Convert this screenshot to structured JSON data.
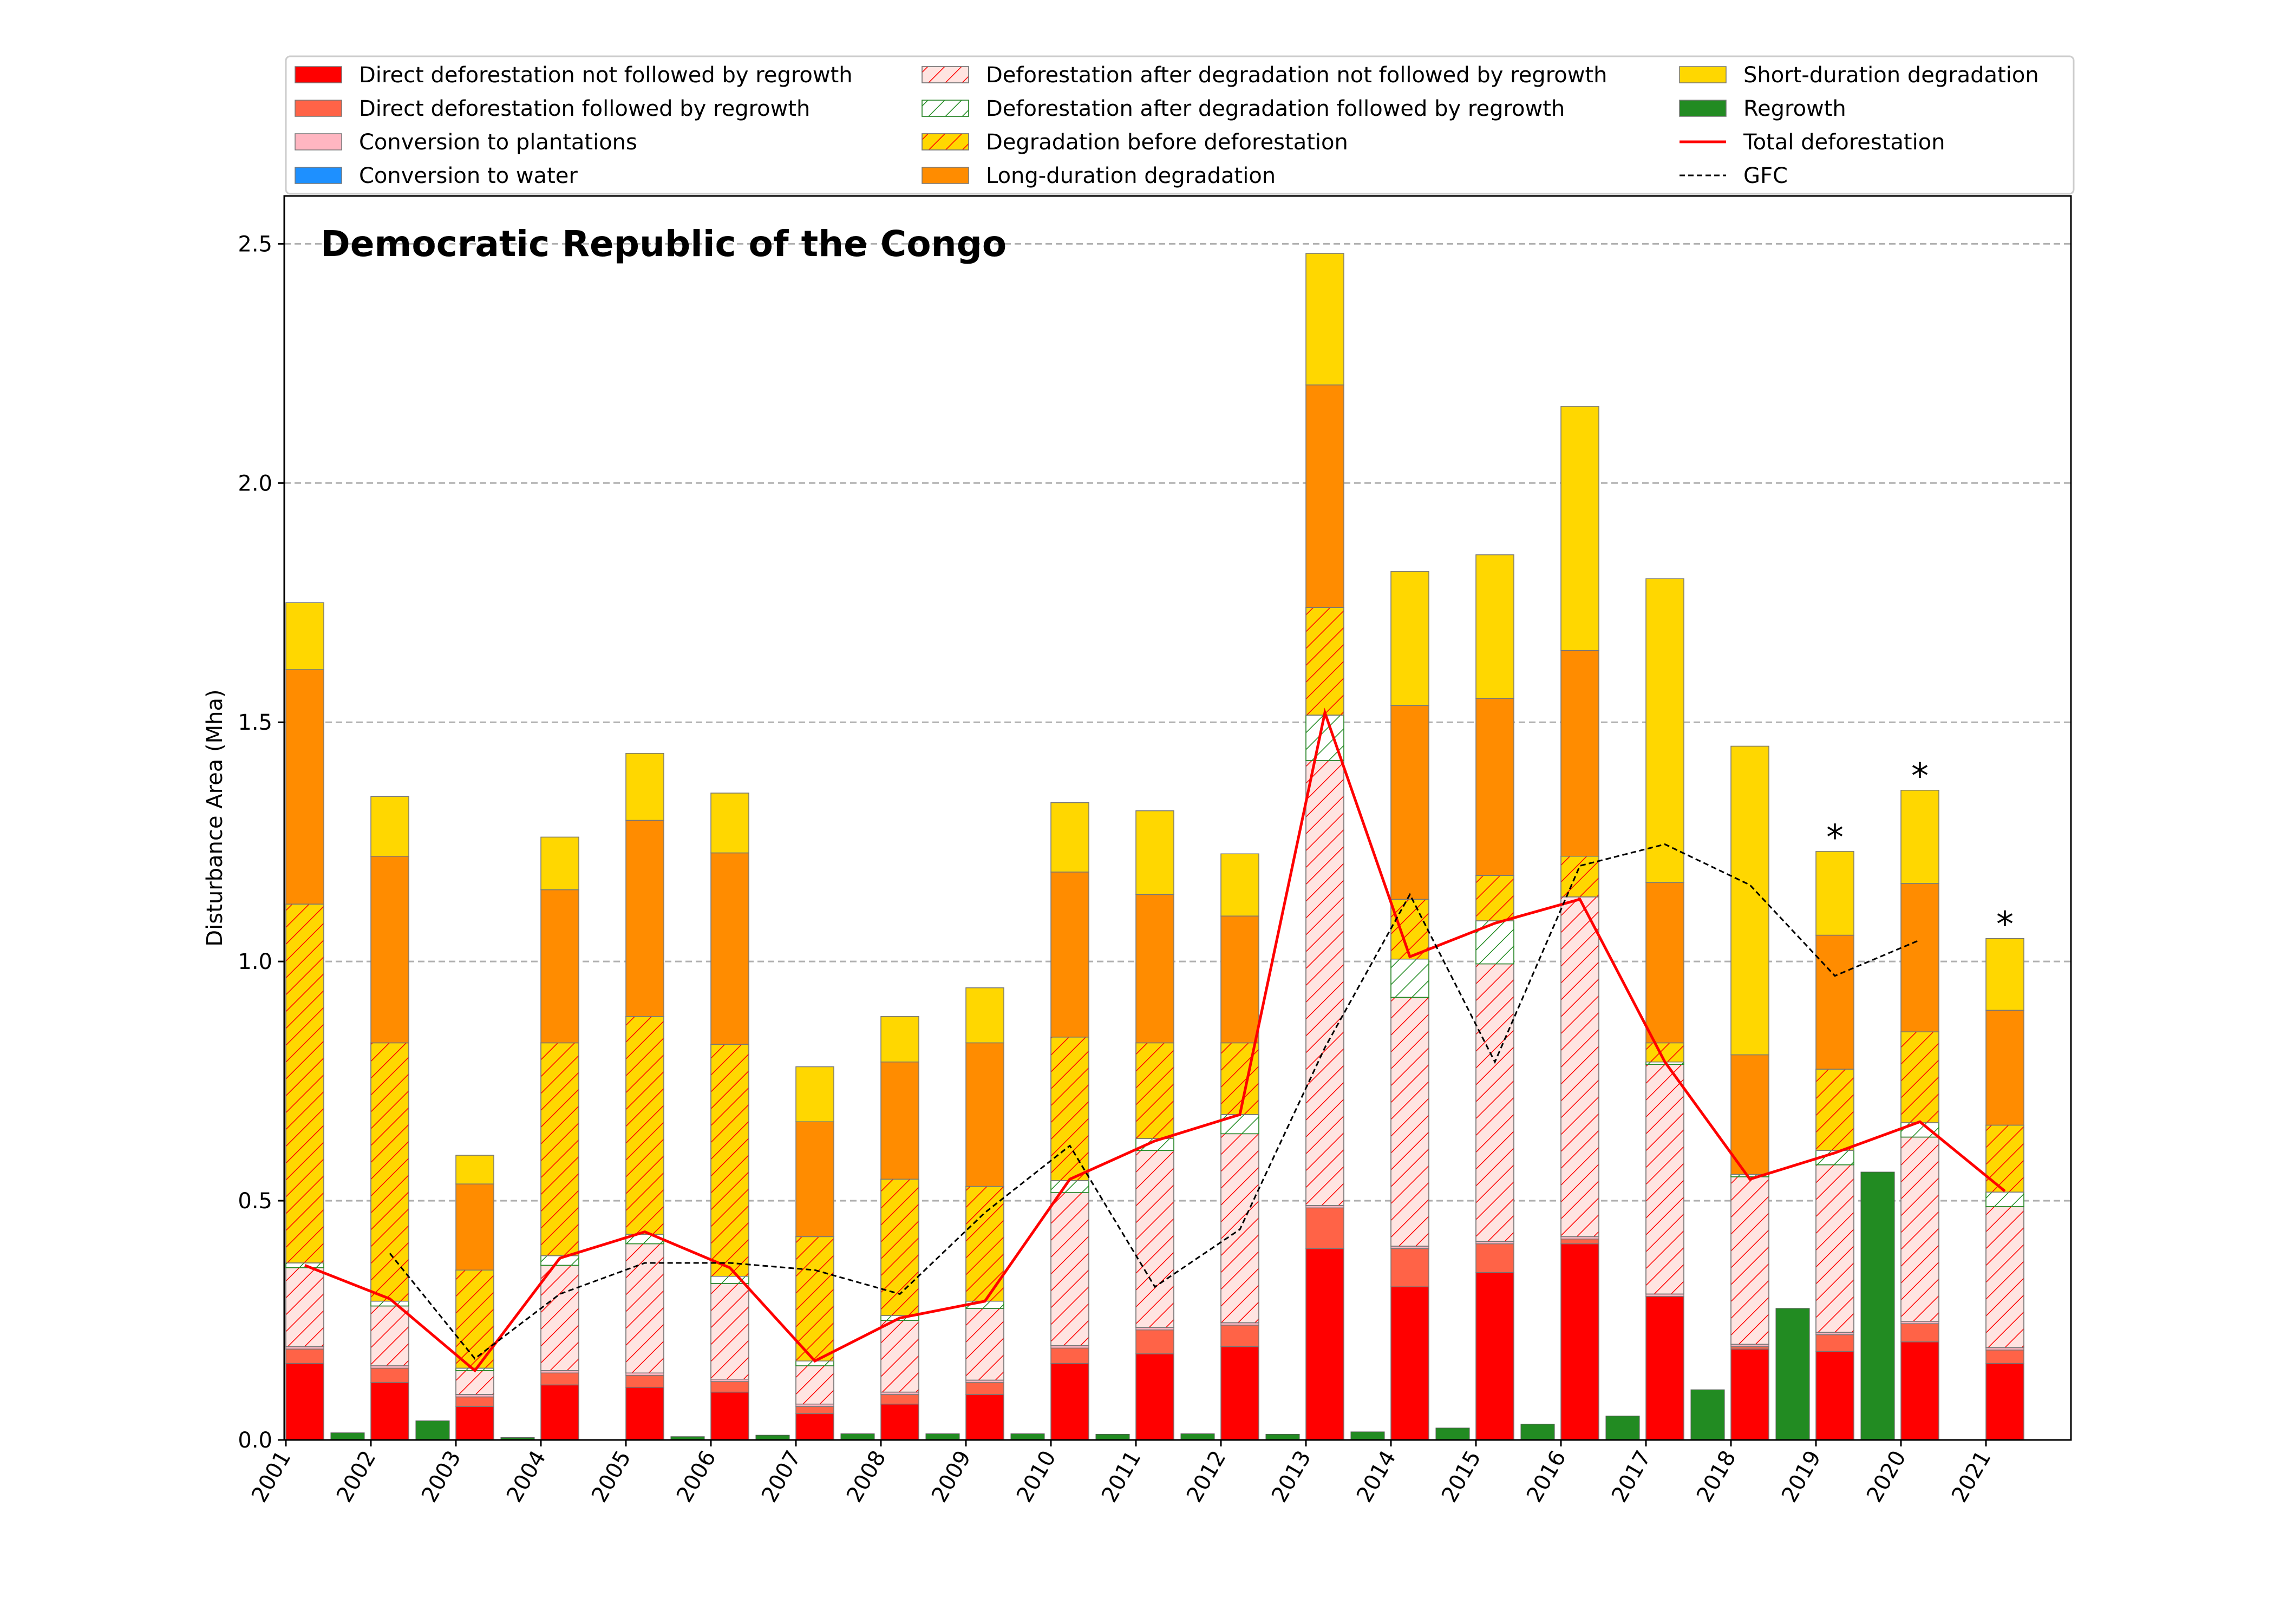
{
  "chart_data": {
    "type": "bar",
    "title": "Democratic Republic of the Congo",
    "xlabel": "",
    "ylabel": "Disturbance Area (Mha)",
    "ylim": [
      0,
      2.6
    ],
    "yticks": [
      "0.0",
      "0.5",
      "1.0",
      "1.5",
      "2.0",
      "2.5"
    ],
    "grid": "horizontal dashed",
    "legend_position": "top",
    "categories": [
      "2001",
      "2002",
      "2003",
      "2004",
      "2005",
      "2006",
      "2007",
      "2008",
      "2009",
      "2010",
      "2011",
      "2012",
      "2013",
      "2014",
      "2015",
      "2016",
      "2017",
      "2018",
      "2019",
      "2020",
      "2021"
    ],
    "stacked_series": [
      {
        "name": "Direct deforestation not followed by regrowth",
        "color": "#ff0000",
        "hatch": "none",
        "values": [
          0.16,
          0.12,
          0.07,
          0.115,
          0.11,
          0.1,
          0.055,
          0.075,
          0.095,
          0.16,
          0.18,
          0.195,
          0.4,
          0.32,
          0.35,
          0.41,
          0.3,
          0.19,
          0.185,
          0.205,
          0.16
        ]
      },
      {
        "name": "Direct deforestation followed by regrowth",
        "color": "#ff6347",
        "hatch": "none",
        "values": [
          0.03,
          0.03,
          0.02,
          0.025,
          0.025,
          0.022,
          0.015,
          0.02,
          0.025,
          0.032,
          0.05,
          0.045,
          0.085,
          0.08,
          0.06,
          0.01,
          0.0,
          0.005,
          0.035,
          0.038,
          0.028
        ]
      },
      {
        "name": "Conversion to plantations",
        "color": "#ffb6c1",
        "hatch": "none",
        "values": [
          0.005,
          0.005,
          0.005,
          0.005,
          0.005,
          0.005,
          0.005,
          0.005,
          0.005,
          0.005,
          0.005,
          0.005,
          0.005,
          0.005,
          0.005,
          0.005,
          0.005,
          0.005,
          0.005,
          0.005,
          0.005
        ]
      },
      {
        "name": "Conversion to water",
        "color": "#1e90ff",
        "hatch": "none",
        "values": [
          0,
          0,
          0,
          0,
          0,
          0,
          0,
          0,
          0,
          0,
          0,
          0,
          0,
          0,
          0,
          0,
          0,
          0,
          0,
          0,
          0
        ]
      },
      {
        "name": "Deforestation after degradation not followed by regrowth",
        "color": "#ffe4e1",
        "hatch": "red",
        "values": [
          0.165,
          0.125,
          0.05,
          0.22,
          0.27,
          0.2,
          0.08,
          0.15,
          0.15,
          0.32,
          0.37,
          0.395,
          0.93,
          0.52,
          0.58,
          0.71,
          0.48,
          0.35,
          0.35,
          0.385,
          0.295
        ]
      },
      {
        "name": "Deforestation after degradation followed by regrowth",
        "color": "#ffffff",
        "hatch": "green",
        "values": [
          0.01,
          0.01,
          0.005,
          0.02,
          0.02,
          0.015,
          0.01,
          0.01,
          0.015,
          0.025,
          0.025,
          0.04,
          0.095,
          0.08,
          0.09,
          0.0,
          0.005,
          0.005,
          0.03,
          0.03,
          0.03
        ]
      },
      {
        "name": "Degradation before deforestation",
        "color": "#ffd700",
        "hatch": "red",
        "values": [
          0.75,
          0.54,
          0.205,
          0.445,
          0.455,
          0.485,
          0.26,
          0.285,
          0.24,
          0.3,
          0.2,
          0.15,
          0.225,
          0.125,
          0.095,
          0.085,
          0.04,
          0.0,
          0.17,
          0.19,
          0.14
        ]
      },
      {
        "name": "Long-duration degradation",
        "color": "#ff8c00",
        "hatch": "none",
        "values": [
          0.49,
          0.39,
          0.18,
          0.32,
          0.41,
          0.4,
          0.24,
          0.245,
          0.3,
          0.345,
          0.31,
          0.265,
          0.465,
          0.405,
          0.37,
          0.43,
          0.335,
          0.25,
          0.28,
          0.31,
          0.24
        ]
      },
      {
        "name": "Short-duration degradation",
        "color": "#ffd700",
        "hatch": "none",
        "values": [
          0.14,
          0.125,
          0.06,
          0.11,
          0.14,
          0.125,
          0.115,
          0.095,
          0.115,
          0.145,
          0.175,
          0.13,
          0.275,
          0.28,
          0.3,
          0.51,
          0.635,
          0.645,
          0.175,
          0.195,
          0.15
        ]
      }
    ],
    "regrowth": {
      "name": "Regrowth",
      "color": "#228b22",
      "values": [
        0.015,
        0.04,
        0.005,
        0.0,
        0.007,
        0.01,
        0.013,
        0.013,
        0.013,
        0.012,
        0.013,
        0.012,
        0.017,
        0.025,
        0.033,
        0.05,
        0.105,
        0.275,
        0.56,
        0,
        0
      ]
    },
    "total_deforestation": {
      "name": "Total deforestation",
      "color": "#ff0000",
      "values": [
        0.365,
        0.295,
        0.145,
        0.38,
        0.435,
        0.36,
        0.165,
        0.255,
        0.29,
        0.545,
        0.625,
        0.68,
        1.52,
        1.01,
        1.08,
        1.13,
        0.79,
        0.545,
        0.6,
        0.665,
        0.52
      ]
    },
    "gfc": {
      "name": "GFC",
      "color": "#000000",
      "values": [
        null,
        0.39,
        0.17,
        0.305,
        0.37,
        0.37,
        0.355,
        0.305,
        0.475,
        0.615,
        0.32,
        0.44,
        0.82,
        1.14,
        0.79,
        1.2,
        1.245,
        1.16,
        0.97,
        1.045,
        null
      ]
    },
    "asterisks": [
      "*",
      "*",
      "*"
    ],
    "asterisk_years": [
      "2019",
      "2020",
      "2021"
    ]
  }
}
